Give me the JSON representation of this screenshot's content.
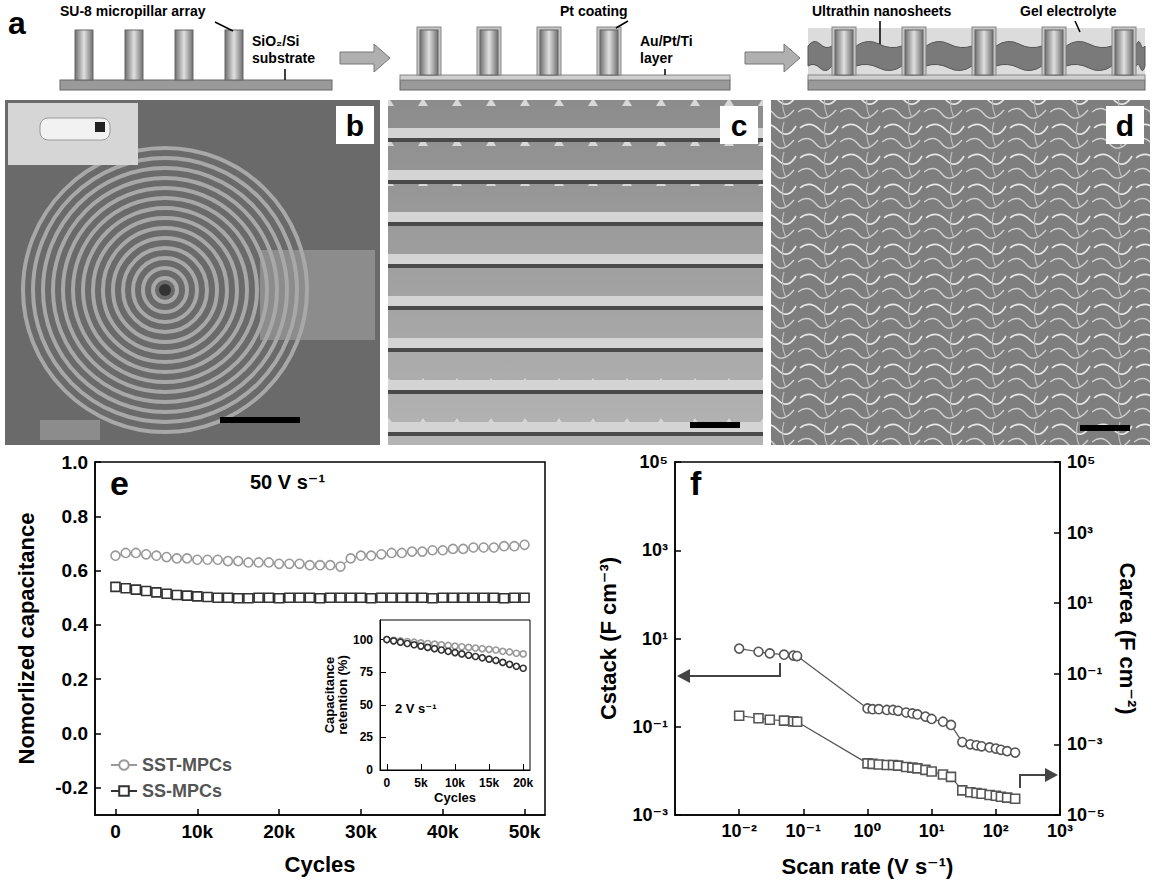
{
  "figure": {
    "panel_a": {
      "letter": "a",
      "labels": [
        "SU-8 micropillar array",
        "SiO₂/Si substrate",
        "Pt coating",
        "Au/Pt/Ti layer",
        "Ultrathin nanosheets",
        "Gel electrolyte"
      ]
    },
    "image_panels": [
      "b",
      "c",
      "d"
    ]
  },
  "chart_data": [
    {
      "type": "line",
      "annotations": [
        "e",
        "50 V s⁻¹"
      ],
      "x_label": "Cycles",
      "y_label": "Nomorlized capacitance",
      "x": [
        0,
        1250,
        2500,
        3750,
        5000,
        6250,
        7500,
        8750,
        10000,
        11250,
        12500,
        13750,
        15000,
        16250,
        17500,
        18750,
        20000,
        21250,
        22500,
        23750,
        25000,
        26250,
        27500,
        28750,
        30000,
        31250,
        32500,
        33750,
        35000,
        36250,
        37500,
        38750,
        40000,
        41250,
        42500,
        43750,
        45000,
        46250,
        47500,
        48750,
        50000
      ],
      "series": [
        {
          "name": "SST-MPCs",
          "color": "#999999",
          "marker": "circle",
          "values": [
            0.655,
            0.665,
            0.665,
            0.66,
            0.655,
            0.65,
            0.645,
            0.645,
            0.64,
            0.64,
            0.64,
            0.635,
            0.635,
            0.63,
            0.63,
            0.63,
            0.625,
            0.625,
            0.625,
            0.62,
            0.62,
            0.62,
            0.615,
            0.645,
            0.655,
            0.655,
            0.66,
            0.665,
            0.665,
            0.67,
            0.67,
            0.675,
            0.675,
            0.68,
            0.68,
            0.685,
            0.685,
            0.685,
            0.69,
            0.69,
            0.695
          ]
        },
        {
          "name": "SS-MPCs",
          "color": "#333333",
          "marker": "square",
          "values": [
            0.54,
            0.535,
            0.53,
            0.525,
            0.52,
            0.515,
            0.51,
            0.508,
            0.505,
            0.503,
            0.5,
            0.5,
            0.498,
            0.498,
            0.5,
            0.5,
            0.498,
            0.5,
            0.5,
            0.5,
            0.498,
            0.5,
            0.5,
            0.5,
            0.5,
            0.498,
            0.5,
            0.5,
            0.5,
            0.5,
            0.5,
            0.498,
            0.5,
            0.5,
            0.5,
            0.5,
            0.5,
            0.5,
            0.498,
            0.5,
            0.5
          ]
        }
      ],
      "xlim": [
        -2500,
        52500
      ],
      "xticks": [
        0,
        {
          "value": 10000,
          "label": "10k"
        },
        {
          "value": 20000,
          "label": "20k"
        },
        {
          "value": 30000,
          "label": "30k"
        },
        {
          "value": 40000,
          "label": "40k"
        },
        {
          "value": 50000,
          "label": "50k"
        }
      ],
      "ylim": [
        -0.3,
        1.0
      ],
      "yticks": [
        -0.2,
        {
          "value": 0,
          "label": "0.0"
        },
        0.2,
        0.4,
        0.6,
        0.8,
        {
          "value": 1.0,
          "label": "1.0"
        }
      ],
      "grid": false,
      "legend": "lower left"
    },
    {
      "type": "line",
      "annotations": [
        "2 V s⁻¹"
      ],
      "x_label": "Cycles",
      "y_label": "Capacitance retention (%)",
      "x": [
        0,
        1000,
        2000,
        3000,
        4000,
        5000,
        6000,
        7000,
        8000,
        9000,
        10000,
        11000,
        12000,
        13000,
        14000,
        15000,
        16000,
        17000,
        18000,
        19000,
        20000
      ],
      "series": [
        {
          "color": "#999999",
          "marker": "circle",
          "values": [
            100,
            99.5,
            99,
            98.5,
            98,
            97.5,
            97,
            96.5,
            96,
            95.5,
            95,
            94.5,
            94,
            93.5,
            93,
            92.5,
            92,
            91,
            90.5,
            89.5,
            89
          ]
        },
        {
          "color": "#333333",
          "marker": "circle",
          "values": [
            100,
            99,
            98,
            97,
            96,
            95,
            94,
            93,
            92,
            91,
            90,
            89,
            88,
            87,
            86,
            85,
            84,
            82.5,
            81,
            79.5,
            78
          ]
        }
      ],
      "xlim": [
        -1000,
        21000
      ],
      "xticks": [
        0,
        {
          "value": 5000,
          "label": "5k"
        },
        {
          "value": 10000,
          "label": "10k"
        },
        {
          "value": 15000,
          "label": "15k"
        },
        {
          "value": 20000,
          "label": "20k"
        }
      ],
      "ylim": [
        0,
        115
      ],
      "yticks": [
        0,
        25,
        50,
        75,
        100
      ],
      "grid": false
    },
    {
      "type": "line",
      "annotations": [
        "f"
      ],
      "x_label": "Scan rate (V s⁻¹)",
      "y_label": "Cstack (F cm⁻³)",
      "y2_label": "Carea (F cm⁻²)",
      "log": true,
      "x": [
        0.01,
        0.02,
        0.03,
        0.05,
        0.07,
        0.08,
        1,
        1.2,
        1.5,
        2,
        2.5,
        3,
        4,
        5,
        6,
        8,
        10,
        15,
        20,
        30,
        40,
        50,
        60,
        80,
        100,
        120,
        150,
        200
      ],
      "series": [
        {
          "color": "#555555",
          "marker": "circle",
          "values": [
            5.9,
            5.0,
            4.6,
            4.3,
            4.1,
            4.0,
            0.26,
            0.25,
            0.25,
            0.24,
            0.24,
            0.23,
            0.21,
            0.2,
            0.19,
            0.17,
            0.15,
            0.13,
            0.11,
            0.045,
            0.04,
            0.038,
            0.036,
            0.034,
            0.032,
            0.03,
            0.028,
            0.026
          ]
        },
        {
          "color": "#555555",
          "marker": "square",
          "axis": "y2",
          "values": [
            0.0065,
            0.0055,
            0.005,
            0.0047,
            0.0045,
            0.0044,
            0.00029,
            0.00028,
            0.00027,
            0.00026,
            0.00026,
            0.00025,
            0.00023,
            0.00022,
            0.00021,
            0.00019,
            0.00017,
            0.00014,
            0.00012,
            5e-05,
            4.4e-05,
            4.2e-05,
            4e-05,
            3.7e-05,
            3.5e-05,
            3.3e-05,
            3.1e-05,
            2.9e-05
          ]
        }
      ],
      "xlim": [
        0.001,
        1000
      ],
      "xticks": [
        {
          "value": 0.01,
          "label": "10⁻²"
        },
        {
          "value": 0.1,
          "label": "10⁻¹"
        },
        {
          "value": 1,
          "label": "10⁰"
        },
        {
          "value": 10,
          "label": "10¹"
        },
        {
          "value": 100,
          "label": "10²"
        },
        {
          "value": 1000,
          "label": "10³"
        }
      ],
      "ylim": [
        0.001,
        100000
      ],
      "yticks": [
        {
          "value": 0.001,
          "label": "10⁻³"
        },
        {
          "value": 0.1,
          "label": "10⁻¹"
        },
        {
          "value": 10,
          "label": "10¹"
        },
        {
          "value": 1000,
          "label": "10³"
        },
        {
          "value": 100000,
          "label": "10⁵"
        }
      ],
      "y2lim": [
        1e-05,
        100000
      ],
      "y2ticks": [
        {
          "value": 1e-05,
          "label": "10⁻⁵"
        },
        {
          "value": 0.001,
          "label": "10⁻³"
        },
        {
          "value": 0.1,
          "label": "10⁻¹"
        },
        {
          "value": 10,
          "label": "10¹"
        },
        {
          "value": 1000,
          "label": "10³"
        },
        {
          "value": 100000,
          "label": "10⁵"
        }
      ],
      "grid": false
    }
  ]
}
